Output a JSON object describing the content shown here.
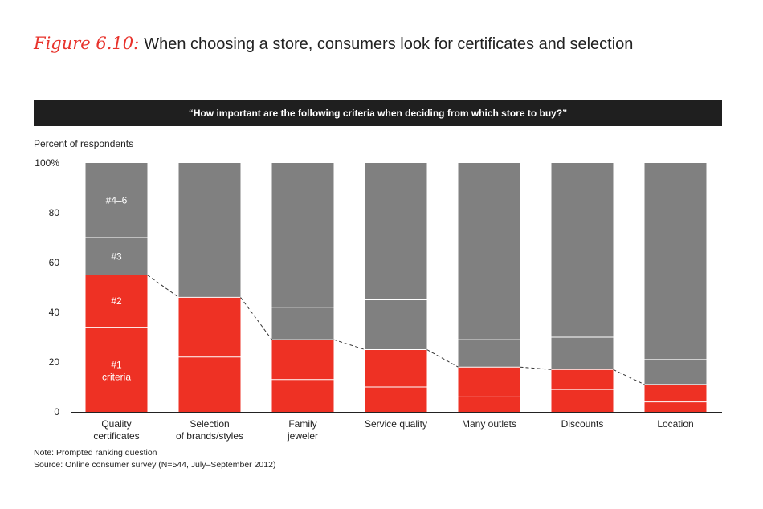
{
  "figure": {
    "label": "Figure 6.10:",
    "title": "When choosing a store, consumers look for certificates and selection"
  },
  "banner": "“How important are the following criteria when deciding from which store to buy?”",
  "subtitle": "Percent of respondents",
  "notes": {
    "note": "Note: Prompted ranking question",
    "source": "Source: Online consumer survey (N=544, July–September 2012)"
  },
  "chart_data": {
    "type": "bar",
    "stacked": true,
    "categories": [
      "Quality\ncertificates",
      "Selection\nof brands/styles",
      "Family\njeweler",
      "Service quality",
      "Many outlets",
      "Discounts",
      "Location"
    ],
    "series": [
      {
        "name": "#1 criteria",
        "values": [
          34,
          22,
          13,
          10,
          6,
          9,
          4
        ],
        "color": "#ee3124"
      },
      {
        "name": "#2",
        "values": [
          21,
          24,
          16,
          15,
          12,
          8,
          7
        ],
        "color": "#ee3124"
      },
      {
        "name": "#3",
        "values": [
          15,
          19,
          13,
          20,
          11,
          13,
          10
        ],
        "color": "#808080"
      },
      {
        "name": "#4–6",
        "values": [
          30,
          35,
          58,
          55,
          71,
          70,
          79
        ],
        "color": "#808080"
      }
    ],
    "yticks": [
      "0",
      "20",
      "40",
      "60",
      "80",
      "100%"
    ],
    "ylim": [
      0,
      100
    ],
    "segment_labels": {
      "top": "#4–6",
      "third": "#3",
      "second": "#2",
      "first_line1": "#1",
      "first_line2": "criteria"
    },
    "connector": "dashed line linking tops of red (#1 + #2) segments"
  }
}
